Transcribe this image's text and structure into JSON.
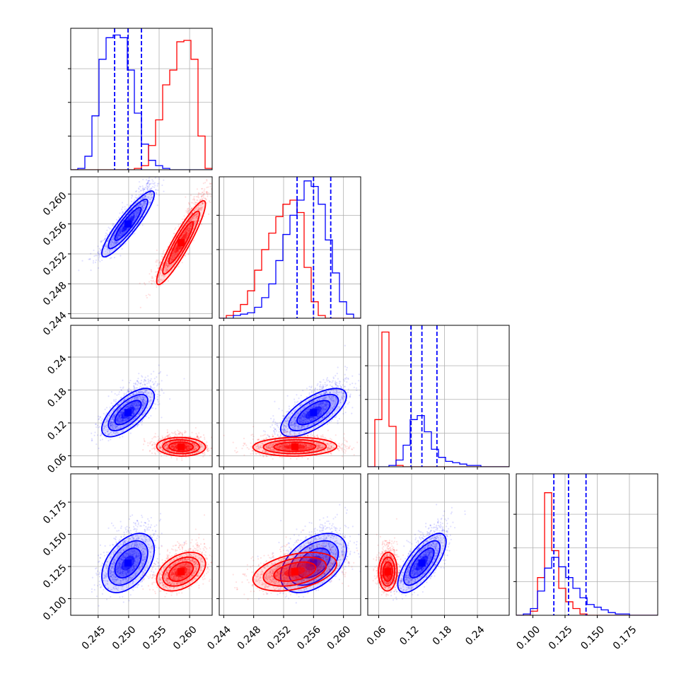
{
  "figure": {
    "type": "corner-plot",
    "parameters": 4,
    "grid": true
  },
  "series_colors": {
    "blue": "#0000ff",
    "red": "#ff0000"
  },
  "chart_data": [
    {
      "type": "histogram",
      "row": 0,
      "col": 0,
      "xlim": [
        0.2405,
        0.2637
      ],
      "ylim": [
        0,
        1.05
      ],
      "xticks": [
        0.245,
        0.25,
        0.255,
        0.26
      ],
      "yticks": [
        0.25,
        0.5,
        0.75
      ],
      "series": [
        {
          "color": "blue",
          "bin_start": 0.2405,
          "bin_width": 0.00116,
          "values": [
            0.0,
            0.01,
            0.1,
            0.4,
            0.82,
            0.98,
            1.0,
            0.98,
            0.74,
            0.42,
            0.19,
            0.07,
            0.03,
            0.01,
            0.0,
            0.0,
            0.0,
            0.0,
            0.0,
            0.0
          ]
        },
        {
          "color": "red",
          "bin_start": 0.2405,
          "bin_width": 0.00116,
          "values": [
            0.0,
            0.0,
            0.0,
            0.0,
            0.0,
            0.0,
            0.0,
            0.0,
            0.0,
            0.01,
            0.03,
            0.18,
            0.37,
            0.63,
            0.74,
            0.95,
            0.96,
            0.82,
            0.25,
            0.01
          ]
        }
      ],
      "quantile_lines": [
        0.2477,
        0.2499,
        0.2521
      ]
    },
    {
      "type": "histogram",
      "row": 1,
      "col": 1,
      "xlim": [
        0.2434,
        0.2623
      ],
      "ylim": [
        0,
        1.03
      ],
      "xticks": [
        0.244,
        0.248,
        0.252,
        0.256,
        0.26
      ],
      "yticks": [
        0.25,
        0.5,
        0.75
      ],
      "series": [
        {
          "color": "red",
          "bin_start": 0.2434,
          "bin_width": 0.000945,
          "values": [
            0.0,
            0.02,
            0.05,
            0.1,
            0.2,
            0.35,
            0.5,
            0.62,
            0.74,
            0.83,
            0.86,
            0.77,
            0.37,
            0.12,
            0.02,
            0.0,
            0.0,
            0.0,
            0.0,
            0.0
          ]
        },
        {
          "color": "blue",
          "bin_start": 0.2434,
          "bin_width": 0.000945,
          "values": [
            0.0,
            0.0,
            0.02,
            0.03,
            0.04,
            0.08,
            0.15,
            0.25,
            0.42,
            0.61,
            0.75,
            0.86,
            1.0,
            0.96,
            0.83,
            0.57,
            0.33,
            0.12,
            0.03,
            0.0
          ]
        }
      ],
      "quantile_lines": [
        0.2538,
        0.256,
        0.2583
      ]
    },
    {
      "type": "histogram",
      "row": 2,
      "col": 2,
      "xlim": [
        0.04,
        0.298
      ],
      "ylim": [
        0,
        1.05
      ],
      "xticks": [
        0.06,
        0.12,
        0.18,
        0.24
      ],
      "yticks": [
        0.25,
        0.5,
        0.75
      ],
      "series": [
        {
          "color": "red",
          "bin_start": 0.04,
          "bin_width": 0.0129,
          "values": [
            0.0,
            0.35,
            1.0,
            0.3,
            0.01,
            0.0,
            0.0,
            0.0,
            0.0,
            0.0,
            0.0,
            0.0,
            0.0,
            0.0,
            0.0,
            0.0,
            0.0,
            0.0,
            0.0,
            0.0
          ]
        },
        {
          "color": "blue",
          "bin_start": 0.04,
          "bin_width": 0.0129,
          "values": [
            0.0,
            0.0,
            0.0,
            0.01,
            0.05,
            0.16,
            0.35,
            0.38,
            0.26,
            0.13,
            0.07,
            0.04,
            0.03,
            0.02,
            0.01,
            0.01,
            0.0,
            0.0,
            0.0,
            0.0
          ]
        }
      ],
      "quantile_lines": [
        0.1188,
        0.1388,
        0.1662
      ]
    },
    {
      "type": "histogram",
      "row": 3,
      "col": 3,
      "xlim": [
        0.0871,
        0.197
      ],
      "ylim": [
        0,
        1.05
      ],
      "xticks": [
        0.1,
        0.125,
        0.15,
        0.175
      ],
      "yticks": [
        0.25,
        0.5,
        0.75
      ],
      "series": [
        {
          "color": "red",
          "bin_start": 0.0871,
          "bin_width": 0.0055,
          "values": [
            0.0,
            0.0,
            0.03,
            0.28,
            0.91,
            0.48,
            0.2,
            0.1,
            0.05,
            0.01,
            0.0,
            0.0,
            0.0,
            0.0,
            0.0,
            0.0,
            0.0,
            0.0,
            0.0,
            0.0
          ]
        },
        {
          "color": "blue",
          "bin_start": 0.0871,
          "bin_width": 0.0055,
          "values": [
            0.0,
            0.01,
            0.05,
            0.18,
            0.35,
            0.43,
            0.36,
            0.28,
            0.2,
            0.13,
            0.08,
            0.06,
            0.04,
            0.02,
            0.01,
            0.01,
            0.0,
            0.0,
            0.0,
            0.0
          ]
        }
      ],
      "quantile_lines": [
        0.1163,
        0.1277,
        0.1413
      ]
    },
    {
      "type": "scatter-contour",
      "row": 1,
      "col": 0,
      "xlim": [
        0.2405,
        0.2637
      ],
      "ylim": [
        0.2434,
        0.2623
      ],
      "xticks": [
        0.245,
        0.25,
        0.255,
        0.26
      ],
      "yticks": [
        0.244,
        0.248,
        0.252,
        0.256,
        0.26
      ],
      "series": [
        {
          "color": "blue",
          "center": [
            0.2499,
            0.256
          ],
          "sx": 0.00215,
          "sy": 0.0022,
          "rho": 0.9
        },
        {
          "color": "red",
          "center": [
            0.2586,
            0.2535
          ],
          "sx": 0.002,
          "sy": 0.0028,
          "rho": 0.92
        }
      ]
    },
    {
      "type": "scatter-contour",
      "row": 2,
      "col": 0,
      "xlim": [
        0.2405,
        0.2637
      ],
      "ylim": [
        0.04,
        0.298
      ],
      "xticks": [
        0.245,
        0.25,
        0.255,
        0.26
      ],
      "yticks": [
        0.06,
        0.12,
        0.18,
        0.24
      ],
      "series": [
        {
          "color": "blue",
          "center": [
            0.2499,
            0.1388
          ],
          "sx": 0.00215,
          "sy": 0.022,
          "rho": 0.68
        },
        {
          "color": "red",
          "center": [
            0.2586,
            0.0765
          ],
          "sx": 0.002,
          "sy": 0.0085,
          "rho": -0.05
        }
      ]
    },
    {
      "type": "scatter-contour",
      "row": 2,
      "col": 1,
      "xlim": [
        0.2434,
        0.2623
      ],
      "ylim": [
        0.04,
        0.298
      ],
      "xticks": [
        0.244,
        0.248,
        0.252,
        0.256,
        0.26
      ],
      "yticks": [
        0.06,
        0.12,
        0.18,
        0.24
      ],
      "series": [
        {
          "color": "blue",
          "center": [
            0.256,
            0.1388
          ],
          "sx": 0.0022,
          "sy": 0.022,
          "rho": 0.68
        },
        {
          "color": "red",
          "center": [
            0.2535,
            0.0765
          ],
          "sx": 0.0028,
          "sy": 0.0085,
          "rho": 0.05
        }
      ]
    },
    {
      "type": "scatter-contour",
      "row": 3,
      "col": 0,
      "xlim": [
        0.2405,
        0.2637
      ],
      "ylim": [
        0.0871,
        0.197
      ],
      "xticks": [
        0.245,
        0.25,
        0.255,
        0.26
      ],
      "yticks": [
        0.1,
        0.125,
        0.15,
        0.175
      ],
      "series": [
        {
          "color": "blue",
          "center": [
            0.2499,
            0.1277
          ],
          "sx": 0.00215,
          "sy": 0.0115,
          "rho": 0.45
        },
        {
          "color": "red",
          "center": [
            0.2586,
            0.121
          ],
          "sx": 0.002,
          "sy": 0.0075,
          "rho": 0.4
        }
      ]
    },
    {
      "type": "scatter-contour",
      "row": 3,
      "col": 1,
      "xlim": [
        0.2434,
        0.2623
      ],
      "ylim": [
        0.0871,
        0.197
      ],
      "xticks": [
        0.244,
        0.248,
        0.252,
        0.256,
        0.26
      ],
      "yticks": [
        0.1,
        0.125,
        0.15,
        0.175
      ],
      "series": [
        {
          "color": "blue",
          "center": [
            0.256,
            0.1277
          ],
          "sx": 0.0022,
          "sy": 0.0115,
          "rho": 0.45
        },
        {
          "color": "red",
          "center": [
            0.2535,
            0.121
          ],
          "sx": 0.0028,
          "sy": 0.0075,
          "rho": 0.4
        }
      ]
    },
    {
      "type": "scatter-contour",
      "row": 3,
      "col": 2,
      "xlim": [
        0.04,
        0.298
      ],
      "ylim": [
        0.0871,
        0.197
      ],
      "xticks": [
        0.06,
        0.12,
        0.18,
        0.24
      ],
      "yticks": [
        0.1,
        0.125,
        0.15,
        0.175
      ],
      "series": [
        {
          "color": "blue",
          "center": [
            0.1388,
            0.1277
          ],
          "sx": 0.022,
          "sy": 0.0115,
          "rho": 0.72
        },
        {
          "color": "red",
          "center": [
            0.0765,
            0.121
          ],
          "sx": 0.0085,
          "sy": 0.0075,
          "rho": 0.05
        }
      ]
    }
  ]
}
